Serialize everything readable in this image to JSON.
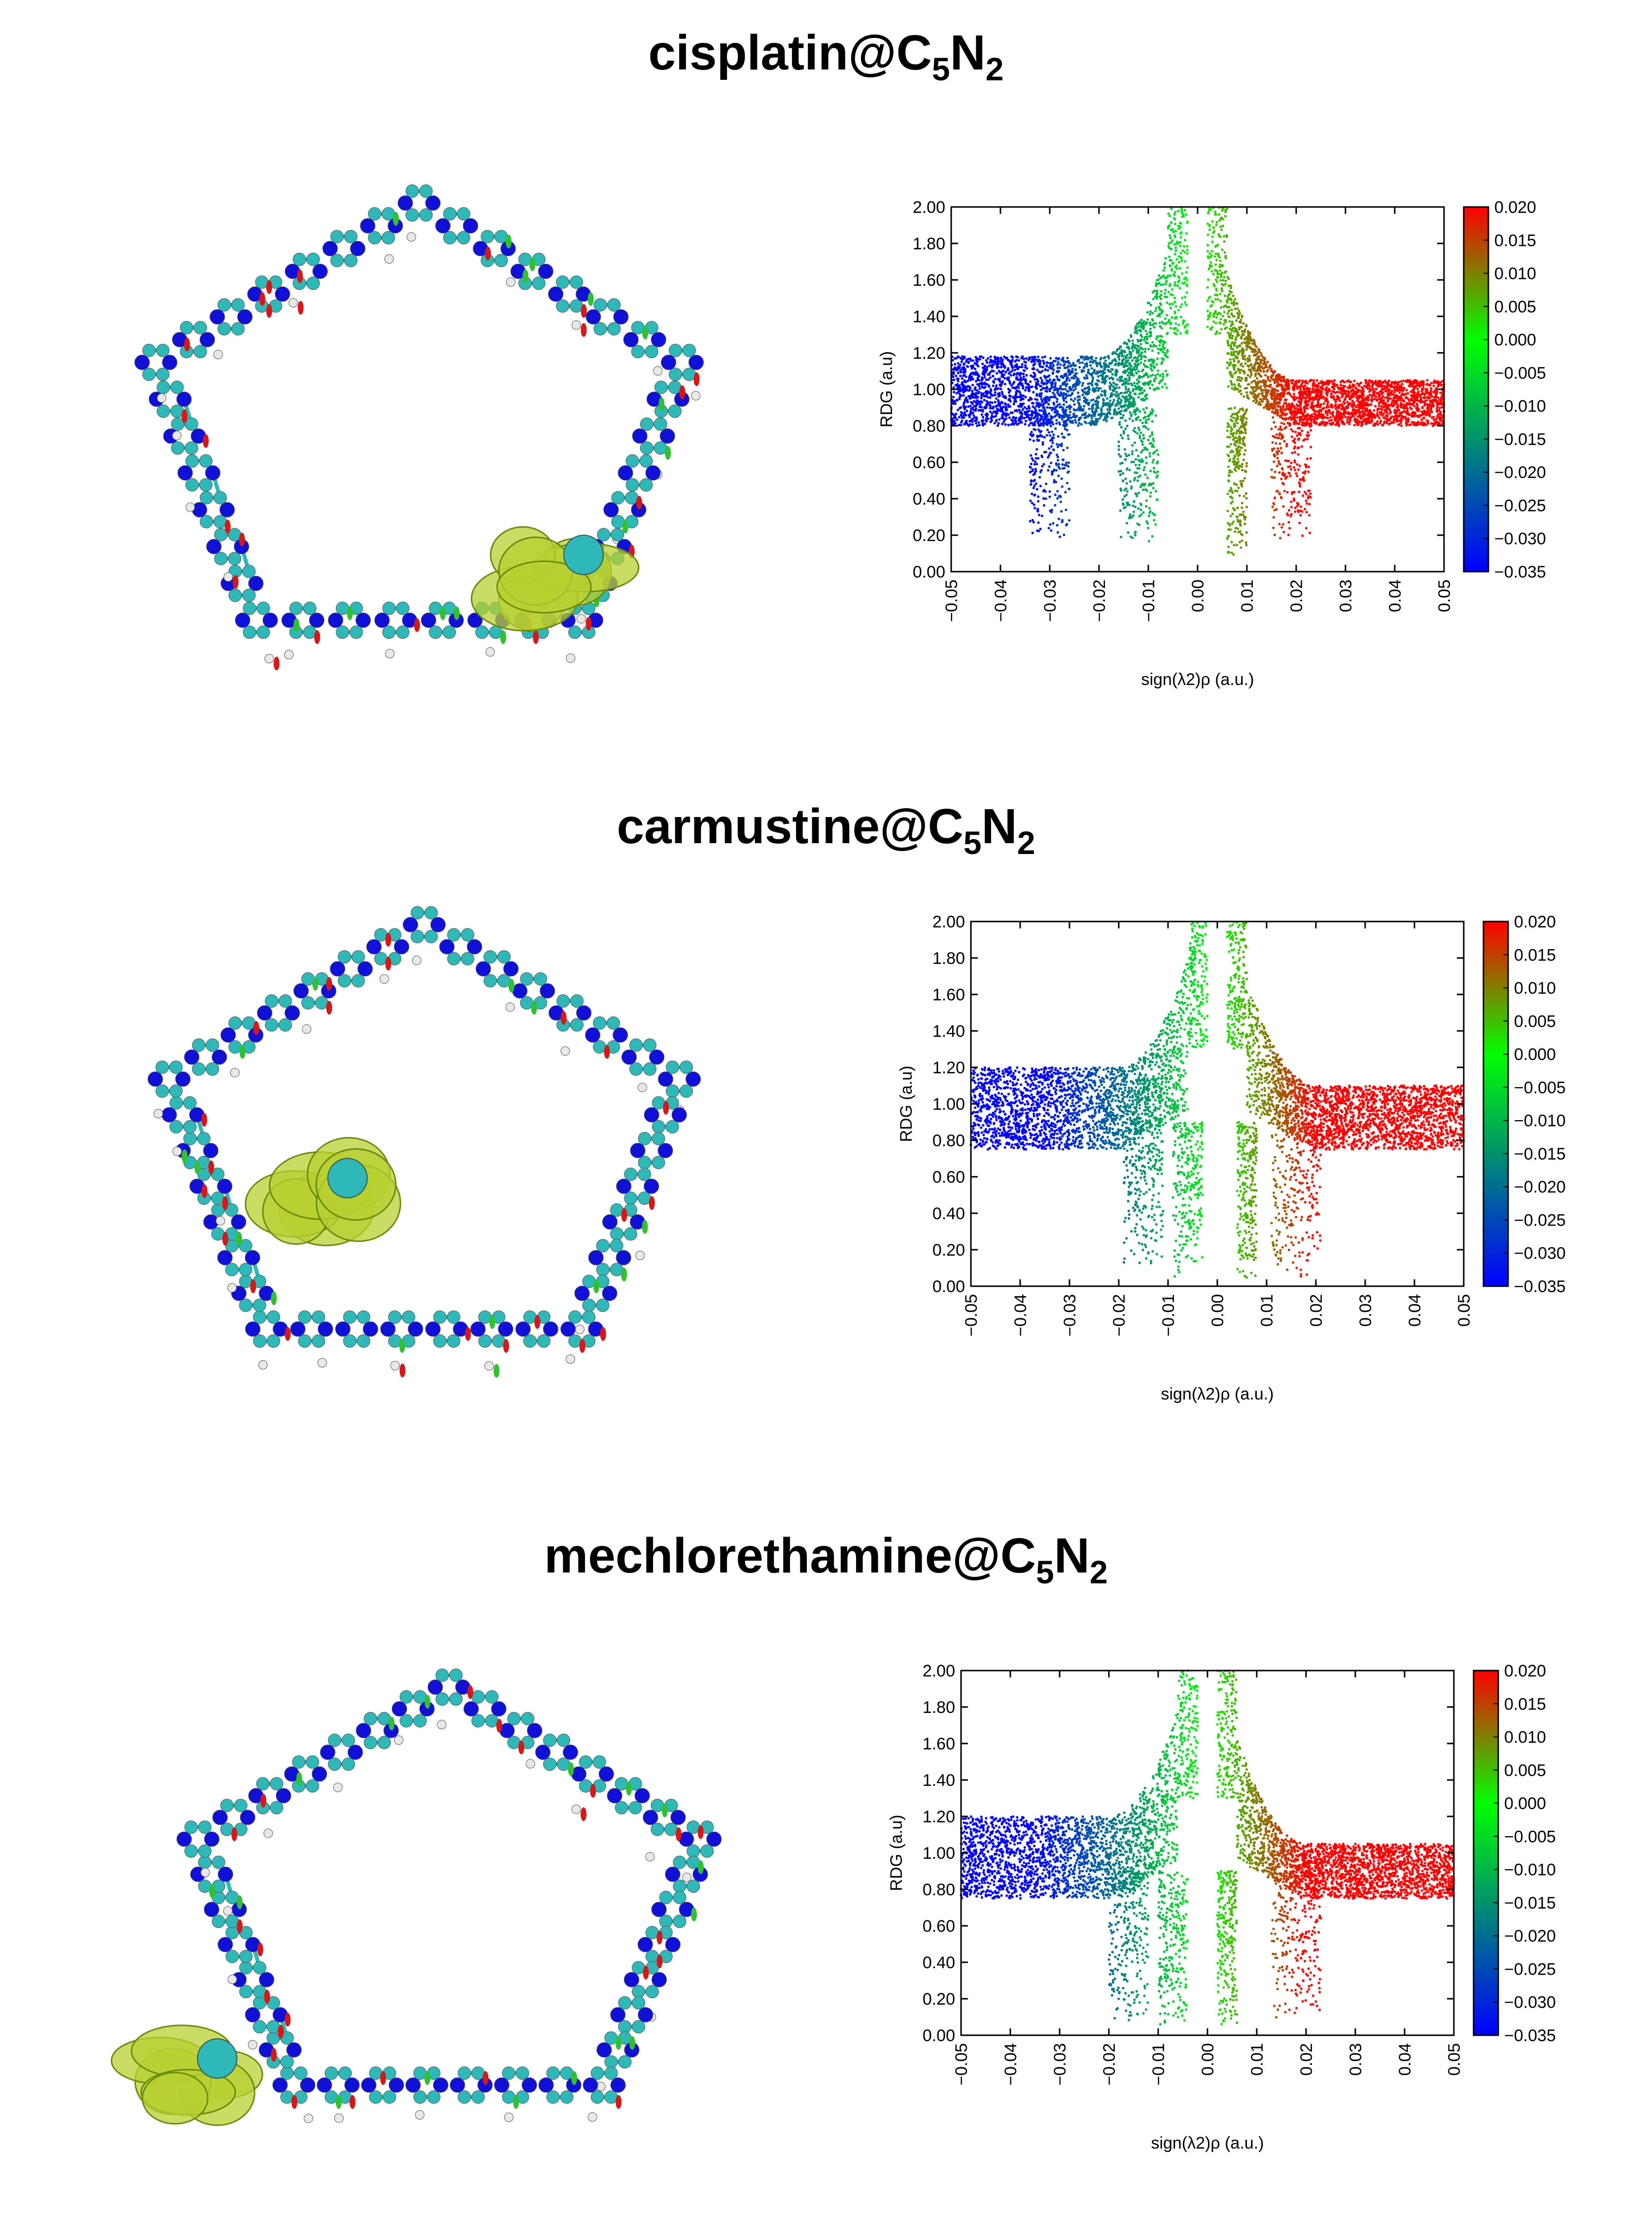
{
  "panels": [
    {
      "title": "cisplatin@C",
      "sub1": "5",
      "mid": "N",
      "sub2": "2",
      "adsorbate_site": "lower-right"
    },
    {
      "title": "carmustine@C",
      "sub1": "5",
      "mid": "N",
      "sub2": "2",
      "adsorbate_site": "center-left"
    },
    {
      "title": "mechlorethamine@C",
      "sub1": "5",
      "mid": "N",
      "sub2": "2",
      "adsorbate_site": "lower-left"
    }
  ],
  "colors": {
    "carbon": "#2fb8b8",
    "nitrogen": "#1010d8",
    "hydrogen": "#e8e8e8",
    "isosurface": "#b8d030",
    "red_disc": "#d81818",
    "green_disc": "#30c030"
  },
  "chart_data": [
    {
      "type": "scatter",
      "title": "",
      "xlabel": "sign(λ2)ρ (a.u.)",
      "ylabel": "RDG (a.u)",
      "xlim": [
        -0.05,
        0.05
      ],
      "ylim": [
        0.0,
        2.0
      ],
      "x_ticks": [
        "−0.05",
        "−0.04",
        "−0.03",
        "−0.02",
        "−0.01",
        "0.00",
        "0.01",
        "0.02",
        "0.03",
        "0.04",
        "0.05"
      ],
      "y_ticks": [
        "0.00",
        "0.20",
        "0.40",
        "0.60",
        "0.80",
        "1.00",
        "1.20",
        "1.40",
        "1.60",
        "1.80",
        "2.00"
      ],
      "colorbar": {
        "min": -0.035,
        "max": 0.02,
        "ticks": [
          "0.020",
          "0.015",
          "0.010",
          "0.005",
          "0.000",
          "−0.005",
          "−0.010",
          "−0.015",
          "−0.020",
          "−0.025",
          "−0.030",
          "−0.035"
        ],
        "colors": [
          "#0000ff",
          "#00ff00",
          "#ff0000"
        ]
      },
      "grid": false,
      "band": {
        "y_low_left": 0.85,
        "y_high_left": 1.18,
        "y_low_right": 0.85,
        "y_high_right": 1.05,
        "peak_x": [
          -0.006,
          0.006
        ]
      },
      "spikes": [
        {
          "x_center": -0.012,
          "spread": 0.004,
          "min_rdg": 0.15
        },
        {
          "x_center": 0.008,
          "spread": 0.002,
          "min_rdg": 0.08
        },
        {
          "x_center": 0.019,
          "spread": 0.004,
          "min_rdg": 0.18
        },
        {
          "x_center": -0.03,
          "spread": 0.004,
          "min_rdg": 0.18
        }
      ]
    },
    {
      "type": "scatter",
      "title": "",
      "xlabel": "sign(λ2)ρ (a.u.)",
      "ylabel": "RDG (a.u)",
      "xlim": [
        -0.05,
        0.05
      ],
      "ylim": [
        0.0,
        2.0
      ],
      "x_ticks": [
        "−0.05",
        "−0.04",
        "−0.03",
        "−0.02",
        "−0.01",
        "0.00",
        "0.01",
        "0.02",
        "0.03",
        "0.04",
        "0.05"
      ],
      "y_ticks": [
        "0.00",
        "0.20",
        "0.40",
        "0.60",
        "0.80",
        "1.00",
        "1.20",
        "1.40",
        "1.60",
        "1.80",
        "2.00"
      ],
      "colorbar": {
        "min": -0.035,
        "max": 0.02,
        "ticks": [
          "0.020",
          "0.015",
          "0.010",
          "0.005",
          "0.000",
          "−0.005",
          "−0.010",
          "−0.015",
          "−0.020",
          "−0.025",
          "−0.030",
          "−0.035"
        ],
        "colors": [
          "#0000ff",
          "#00ff00",
          "#ff0000"
        ]
      },
      "grid": false,
      "band": {
        "y_low_left": 0.8,
        "y_high_left": 1.2,
        "y_low_right": 0.8,
        "y_high_right": 1.1,
        "peak_x": [
          -0.006,
          0.006
        ]
      },
      "spikes": [
        {
          "x_center": -0.015,
          "spread": 0.004,
          "min_rdg": 0.12
        },
        {
          "x_center": -0.006,
          "spread": 0.003,
          "min_rdg": 0.05
        },
        {
          "x_center": 0.006,
          "spread": 0.002,
          "min_rdg": 0.03
        },
        {
          "x_center": 0.016,
          "spread": 0.005,
          "min_rdg": 0.05
        }
      ]
    },
    {
      "type": "scatter",
      "title": "",
      "xlabel": "sign(λ2)ρ (a.u.)",
      "ylabel": "RDG (a.u)",
      "xlim": [
        -0.05,
        0.05
      ],
      "ylim": [
        0.0,
        2.0
      ],
      "x_ticks": [
        "−0.05",
        "−0.04",
        "−0.03",
        "−0.02",
        "−0.01",
        "0.00",
        "0.01",
        "0.02",
        "0.03",
        "0.04",
        "0.05"
      ],
      "y_ticks": [
        "0.00",
        "0.20",
        "0.40",
        "0.60",
        "0.80",
        "1.00",
        "1.20",
        "1.40",
        "1.60",
        "1.80",
        "2.00"
      ],
      "colorbar": {
        "min": -0.035,
        "max": 0.02,
        "ticks": [
          "0.020",
          "0.015",
          "0.010",
          "0.005",
          "0.000",
          "−0.005",
          "−0.010",
          "−0.015",
          "−0.020",
          "−0.025",
          "−0.030",
          "−0.035"
        ],
        "colors": [
          "#0000ff",
          "#00ff00",
          "#ff0000"
        ]
      },
      "grid": false,
      "band": {
        "y_low_left": 0.8,
        "y_high_left": 1.2,
        "y_low_right": 0.8,
        "y_high_right": 1.05,
        "peak_x": [
          -0.006,
          0.006
        ]
      },
      "spikes": [
        {
          "x_center": -0.016,
          "spread": 0.004,
          "min_rdg": 0.08
        },
        {
          "x_center": -0.007,
          "spread": 0.003,
          "min_rdg": 0.05
        },
        {
          "x_center": 0.004,
          "spread": 0.002,
          "min_rdg": 0.05
        },
        {
          "x_center": 0.018,
          "spread": 0.005,
          "min_rdg": 0.08
        }
      ]
    }
  ]
}
